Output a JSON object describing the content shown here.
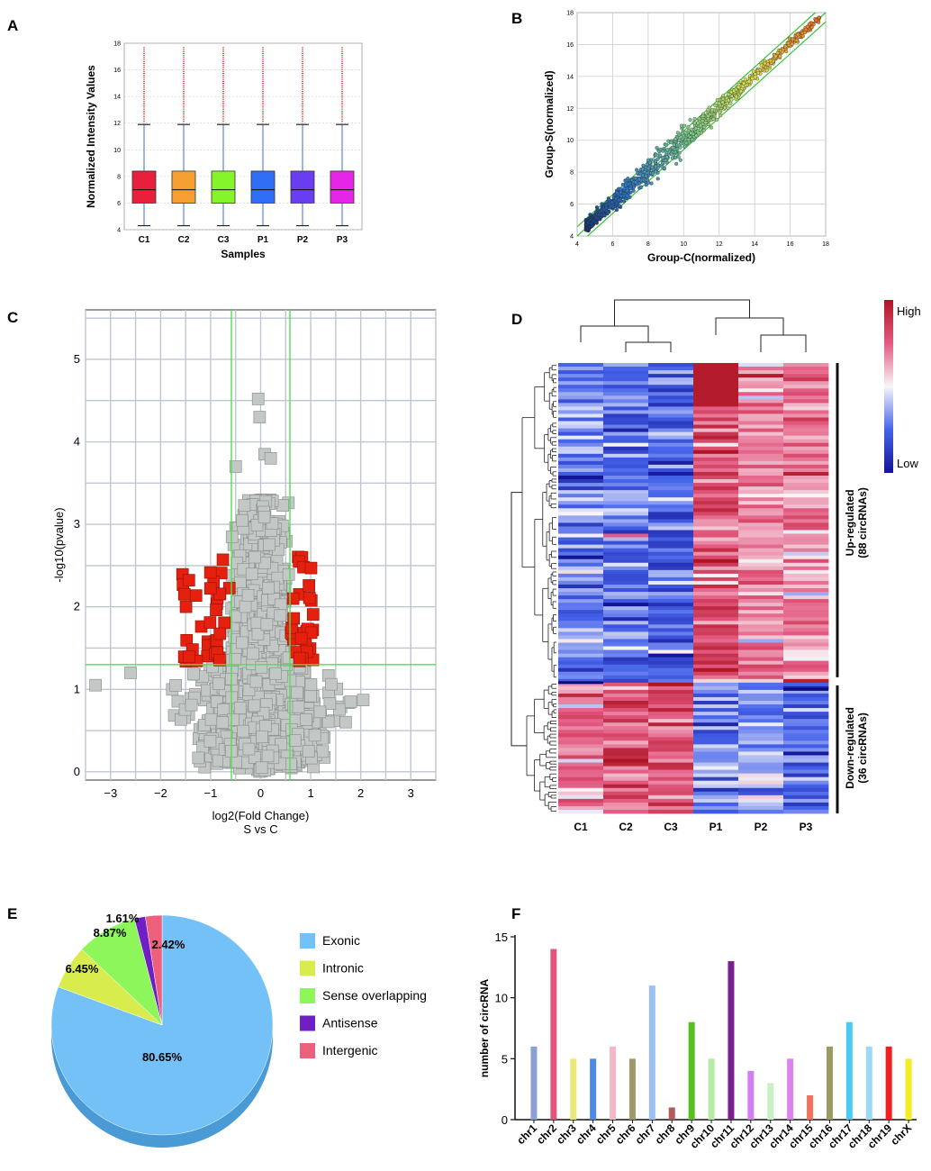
{
  "panels": {
    "A": {
      "letter": "A"
    },
    "B": {
      "letter": "B"
    },
    "C": {
      "letter": "C"
    },
    "D": {
      "letter": "D"
    },
    "E": {
      "letter": "E"
    },
    "F": {
      "letter": "F"
    }
  },
  "chart_data": [
    {
      "id": "A",
      "type": "box",
      "xlabel": "Samples",
      "ylabel": "Normalized Intensity Values",
      "ylim": [
        4,
        18
      ],
      "yticks": [
        4,
        6,
        8,
        10,
        12,
        14,
        16,
        18
      ],
      "series": [
        {
          "name": "C1",
          "color": "#e8203c",
          "q1": 6.0,
          "median": 7.0,
          "q3": 8.4,
          "whisker_low": 4.3,
          "whisker_high": 11.9,
          "outlier_max": 17.7
        },
        {
          "name": "C2",
          "color": "#f6a033",
          "q1": 6.0,
          "median": 7.0,
          "q3": 8.4,
          "whisker_low": 4.3,
          "whisker_high": 11.9,
          "outlier_max": 17.7
        },
        {
          "name": "C3",
          "color": "#86f42a",
          "q1": 6.0,
          "median": 7.0,
          "q3": 8.4,
          "whisker_low": 4.3,
          "whisker_high": 11.9,
          "outlier_max": 17.7
        },
        {
          "name": "P1",
          "color": "#2f6ef5",
          "q1": 6.0,
          "median": 7.0,
          "q3": 8.4,
          "whisker_low": 4.3,
          "whisker_high": 11.9,
          "outlier_max": 17.7
        },
        {
          "name": "P2",
          "color": "#6a3df0",
          "q1": 6.0,
          "median": 7.0,
          "q3": 8.4,
          "whisker_low": 4.3,
          "whisker_high": 11.9,
          "outlier_max": 17.7
        },
        {
          "name": "P3",
          "color": "#e526e8",
          "q1": 6.0,
          "median": 7.0,
          "q3": 8.4,
          "whisker_low": 4.3,
          "whisker_high": 11.9,
          "outlier_max": 17.7
        }
      ]
    },
    {
      "id": "B",
      "type": "scatter",
      "xlabel": "Group-C(normalized)",
      "ylabel": "Group-S(normalized)",
      "xlim": [
        4,
        18
      ],
      "ylim": [
        4,
        18
      ],
      "xticks": [
        4,
        6,
        8,
        10,
        12,
        14,
        16,
        18
      ],
      "yticks": [
        4,
        6,
        8,
        10,
        12,
        14,
        16,
        18
      ],
      "fold_lines": [
        1.5,
        1.0,
        0.6667
      ]
    },
    {
      "id": "C",
      "type": "scatter",
      "title": "",
      "xlabel": "log2(Fold Change)",
      "xsublabel": "S vs C",
      "ylabel": "-log10(pvalue)",
      "xlim": [
        -3.5,
        3.5
      ],
      "ylim": [
        -0.1,
        5.6
      ],
      "xticks": [
        -3,
        -2,
        -1,
        0,
        1,
        2,
        3
      ],
      "yticks": [
        0,
        1,
        2,
        3,
        4,
        5
      ],
      "thresholds": {
        "x": [
          -0.585,
          0.585
        ],
        "y": 1.3
      }
    },
    {
      "id": "D",
      "type": "heatmap",
      "columns": [
        "C1",
        "C2",
        "C3",
        "P1",
        "P2",
        "P3"
      ],
      "legend": {
        "high": "High",
        "low": "Low"
      },
      "groups": [
        {
          "label_line1": "Up-regulated",
          "label_line2": "(88 circRNAs)",
          "rows": 88
        },
        {
          "label_line1": "Down-regulated",
          "label_line2": "(36 circRNAs)",
          "rows": 36
        }
      ]
    },
    {
      "id": "E",
      "type": "pie",
      "slices": [
        {
          "label": "Exonic",
          "value": 80.65,
          "pct_text": "80.65%",
          "color": "#74c1f8"
        },
        {
          "label": "Intronic",
          "value": 6.45,
          "pct_text": "6.45%",
          "color": "#d9ec4e"
        },
        {
          "label": "Sense overlapping",
          "value": 8.87,
          "pct_text": "8.87%",
          "color": "#8cf65a"
        },
        {
          "label": "Antisense",
          "value": 1.61,
          "pct_text": "1.61%",
          "color": "#6f1fc4"
        },
        {
          "label": "Intergenic",
          "value": 2.42,
          "pct_text": "2.42%",
          "color": "#ee5f7c"
        }
      ]
    },
    {
      "id": "F",
      "type": "bar",
      "ylabel": "number of  circRNA",
      "ylim": [
        0,
        15
      ],
      "yticks": [
        0,
        5,
        10,
        15
      ],
      "categories": [
        "chr1",
        "chr2",
        "chr3",
        "chr4",
        "chr5",
        "chr6",
        "chr7",
        "chr8",
        "chr9",
        "chr10",
        "chr11",
        "chr12",
        "chr13",
        "chr14",
        "chr15",
        "chr16",
        "chr17",
        "chr18",
        "chr19",
        "chrX"
      ],
      "values": [
        6,
        14,
        5,
        5,
        6,
        5,
        11,
        1,
        8,
        5,
        13,
        4,
        3,
        5,
        2,
        6,
        8,
        6,
        6,
        5
      ],
      "colors": [
        "#8aa0d4",
        "#e4557e",
        "#e9e87a",
        "#4e89e8",
        "#f3b8c3",
        "#a09a6a",
        "#9cc0f2",
        "#b55a5a",
        "#56c01e",
        "#b7eaa7",
        "#7b1f8f",
        "#d27ef0",
        "#c9efc4",
        "#d883ee",
        "#f0725f",
        "#9c9a63",
        "#4cc9f1",
        "#9bd9f4",
        "#f01f1f",
        "#f5ec23"
      ]
    }
  ]
}
